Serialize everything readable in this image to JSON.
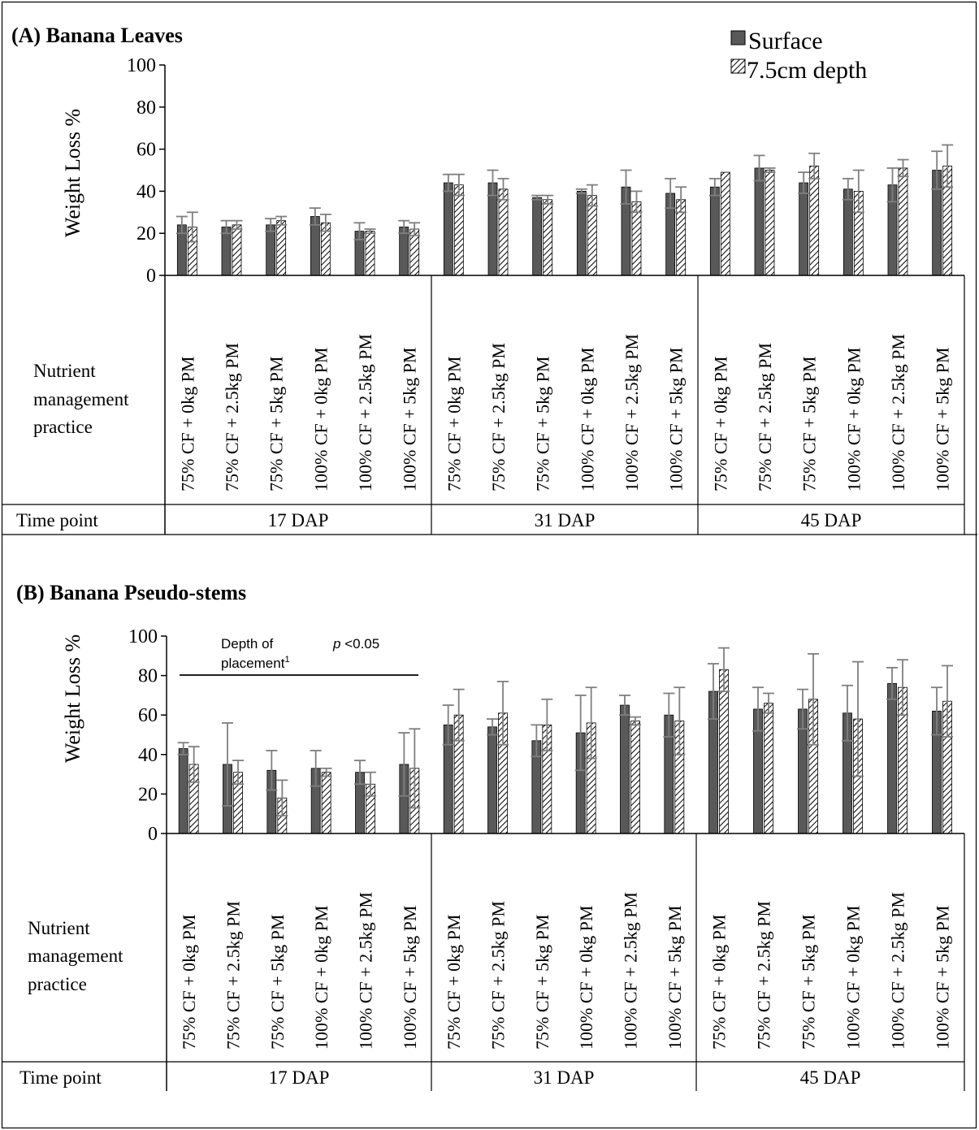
{
  "legend": {
    "items": [
      {
        "label": "Surface",
        "pattern": "solid"
      },
      {
        "label": "7.5cm depth",
        "pattern": "hatched"
      }
    ]
  },
  "colors": {
    "surface_fill": "#595959",
    "depth_fill": "#ffffff",
    "error_bar": "#7f7f7f",
    "axis": "#000000"
  },
  "chart_data": [
    {
      "type": "bar",
      "title": "(A) Banana Leaves",
      "ylabel": "Weight Loss %",
      "ylim": [
        0,
        100
      ],
      "yticks": [
        0,
        20,
        40,
        60,
        80,
        100
      ],
      "row_header": "Nutrient management practice",
      "time_header": "Time point",
      "groups": [
        "17 DAP",
        "31 DAP",
        "45 DAP"
      ],
      "categories": [
        "75% CF + 0kg PM",
        "75% CF + 2.5kg PM",
        "75% CF + 5kg PM",
        "100% CF + 0kg PM",
        "100% CF + 2.5kg PM",
        "100% CF + 5kg PM"
      ],
      "series": [
        {
          "name": "Surface",
          "values": [
            [
              24,
              23,
              24,
              28,
              21,
              23
            ],
            [
              44,
              44,
              37,
              40,
              42,
              39
            ],
            [
              42,
              51,
              44,
              41,
              43,
              50
            ]
          ],
          "errors": [
            [
              4,
              3,
              3,
              4,
              4,
              3
            ],
            [
              4,
              6,
              1,
              1,
              8,
              7
            ],
            [
              4,
              6,
              5,
              5,
              8,
              9
            ]
          ]
        },
        {
          "name": "7.5cm depth",
          "values": [
            [
              23,
              24,
              26,
              25,
              21,
              22
            ],
            [
              43,
              41,
              36,
              38,
              35,
              36
            ],
            [
              49,
              50,
              52,
              40,
              51,
              52
            ]
          ],
          "errors": [
            [
              7,
              2,
              2,
              4,
              1,
              3
            ],
            [
              5,
              5,
              2,
              5,
              5,
              6
            ],
            [
              0,
              1,
              6,
              10,
              4,
              10
            ]
          ]
        }
      ],
      "annotation": null
    },
    {
      "type": "bar",
      "title": "(B) Banana Pseudo-stems",
      "ylabel": "Weight Loss %",
      "ylim": [
        0,
        100
      ],
      "yticks": [
        0,
        20,
        40,
        60,
        80,
        100
      ],
      "row_header": "Nutrient management practice",
      "time_header": "Time point",
      "groups": [
        "17 DAP",
        "31 DAP",
        "45 DAP"
      ],
      "categories": [
        "75% CF + 0kg PM",
        "75% CF + 2.5kg PM",
        "75% CF + 5kg PM",
        "100% CF + 0kg PM",
        "100% CF + 2.5kg PM",
        "100% CF + 5kg PM"
      ],
      "series": [
        {
          "name": "Surface",
          "values": [
            [
              43,
              35,
              32,
              33,
              31,
              35
            ],
            [
              55,
              54,
              47,
              51,
              65,
              60
            ],
            [
              72,
              63,
              63,
              61,
              76,
              62
            ]
          ],
          "errors": [
            [
              3,
              21,
              10,
              9,
              6,
              16
            ],
            [
              10,
              4,
              8,
              19,
              5,
              11
            ],
            [
              14,
              11,
              10,
              14,
              8,
              12
            ]
          ]
        },
        {
          "name": "7.5cm depth",
          "values": [
            [
              35,
              31,
              18,
              31,
              25,
              33
            ],
            [
              60,
              61,
              55,
              56,
              57,
              57
            ],
            [
              83,
              66,
              68,
              58,
              74,
              67
            ]
          ],
          "errors": [
            [
              9,
              6,
              9,
              2,
              6,
              20
            ],
            [
              13,
              16,
              13,
              18,
              2,
              17
            ],
            [
              11,
              5,
              23,
              29,
              14,
              18
            ]
          ]
        }
      ],
      "annotation": {
        "line1": "Depth of",
        "line2": "placement",
        "superscript": "1",
        "pvalue_p": "p",
        "pvalue_rest": " <0.05",
        "span_group": 0
      }
    }
  ]
}
